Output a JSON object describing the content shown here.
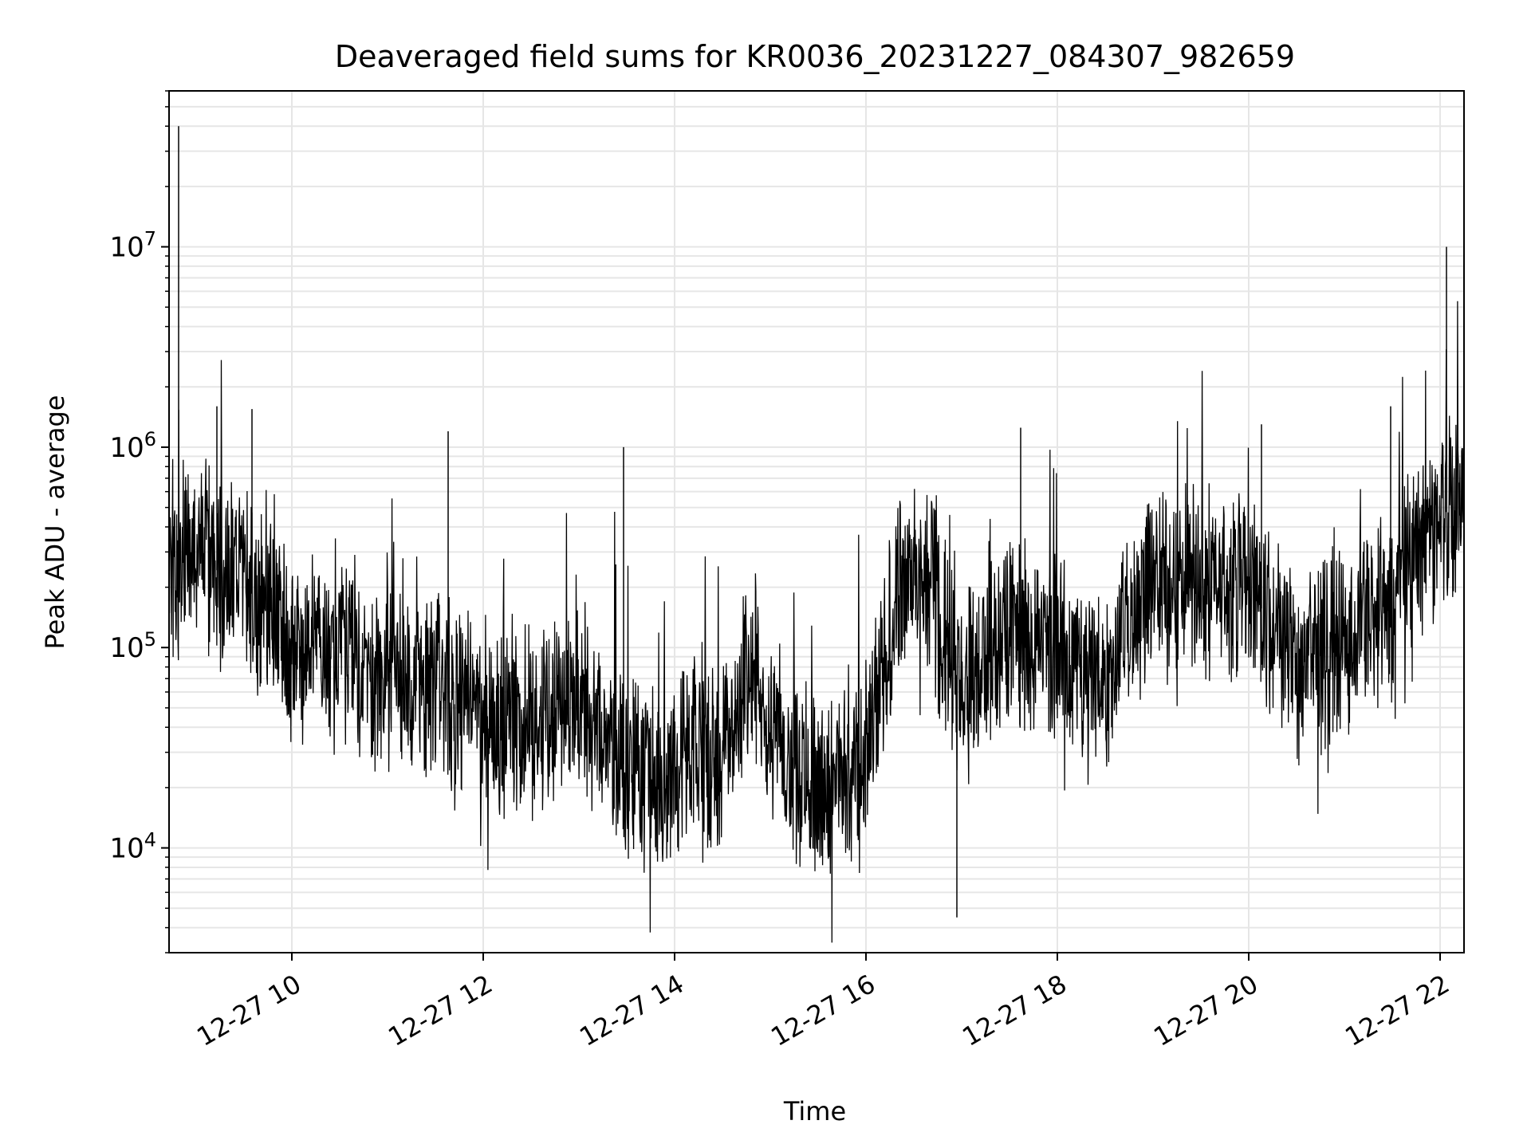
{
  "chart_data": {
    "type": "line",
    "title": "Deaveraged field sums for KR0036_20231227_084307_982659",
    "xlabel": "Time",
    "ylabel": "Peak ADU - average",
    "yscale": "log",
    "ylim": [
      3000,
      60000000
    ],
    "xlim": [
      "2023-12-27 08:43",
      "2023-12-27 22:15"
    ],
    "grid": true,
    "line_color": "#000000",
    "grid_color": "#e6e6e6",
    "x_tick_labels": [
      "12-27 10",
      "12-27 12",
      "12-27 14",
      "12-27 16",
      "12-27 18",
      "12-27 20",
      "12-27 22"
    ],
    "x_tick_values": [
      "2023-12-27 10:00",
      "2023-12-27 12:00",
      "2023-12-27 14:00",
      "2023-12-27 16:00",
      "2023-12-27 18:00",
      "2023-12-27 20:00",
      "2023-12-27 22:00"
    ],
    "y_tick_labels": [
      {
        "base": "10",
        "exp": "4",
        "value": 10000
      },
      {
        "base": "10",
        "exp": "5",
        "value": 100000
      },
      {
        "base": "10",
        "exp": "6",
        "value": 1000000
      },
      {
        "base": "10",
        "exp": "7",
        "value": 10000000
      }
    ],
    "series": [
      {
        "x": [
          "2023-12-27 08:43",
          "2023-12-27 08:50",
          "2023-12-27 09:00",
          "2023-12-27 09:15",
          "2023-12-27 09:30",
          "2023-12-27 09:45",
          "2023-12-27 10:00",
          "2023-12-27 10:30",
          "2023-12-27 11:00",
          "2023-12-27 11:30",
          "2023-12-27 12:00",
          "2023-12-27 12:30",
          "2023-12-27 13:00",
          "2023-12-27 13:30",
          "2023-12-27 14:00",
          "2023-12-27 14:30",
          "2023-12-27 14:50",
          "2023-12-27 15:00",
          "2023-12-27 15:30",
          "2023-12-27 16:00",
          "2023-12-27 16:20",
          "2023-12-27 16:40",
          "2023-12-27 17:00",
          "2023-12-27 17:30",
          "2023-12-27 18:00",
          "2023-12-27 18:30",
          "2023-12-27 18:55",
          "2023-12-27 19:30",
          "2023-12-27 20:00",
          "2023-12-27 20:30",
          "2023-12-27 21:00",
          "2023-12-27 21:30",
          "2023-12-27 22:00",
          "2023-12-27 22:15"
        ],
        "y": [
          250000,
          260000,
          350000,
          230000,
          200000,
          160000,
          110000,
          90000,
          75000,
          65000,
          45000,
          45000,
          50000,
          25000,
          25000,
          30000,
          90000,
          40000,
          20000,
          25000,
          200000,
          220000,
          60000,
          130000,
          90000,
          70000,
          200000,
          220000,
          200000,
          80000,
          110000,
          160000,
          450000,
          550000
        ],
        "spikes": [
          {
            "x": "2023-12-27 08:49",
            "y": 40000000
          },
          {
            "x": "2023-12-27 09:13",
            "y": 1600000
          },
          {
            "x": "2023-12-27 09:35",
            "y": 1550000
          },
          {
            "x": "2023-12-27 11:38",
            "y": 1200000
          },
          {
            "x": "2023-12-27 13:28",
            "y": 1000000
          },
          {
            "x": "2023-12-27 16:57",
            "y": 4500
          },
          {
            "x": "2023-12-27 17:37",
            "y": 1250000
          },
          {
            "x": "2023-12-27 20:08",
            "y": 1300000
          },
          {
            "x": "2023-12-27 21:29",
            "y": 1600000
          },
          {
            "x": "2023-12-27 22:04",
            "y": 10000000
          }
        ]
      }
    ]
  }
}
